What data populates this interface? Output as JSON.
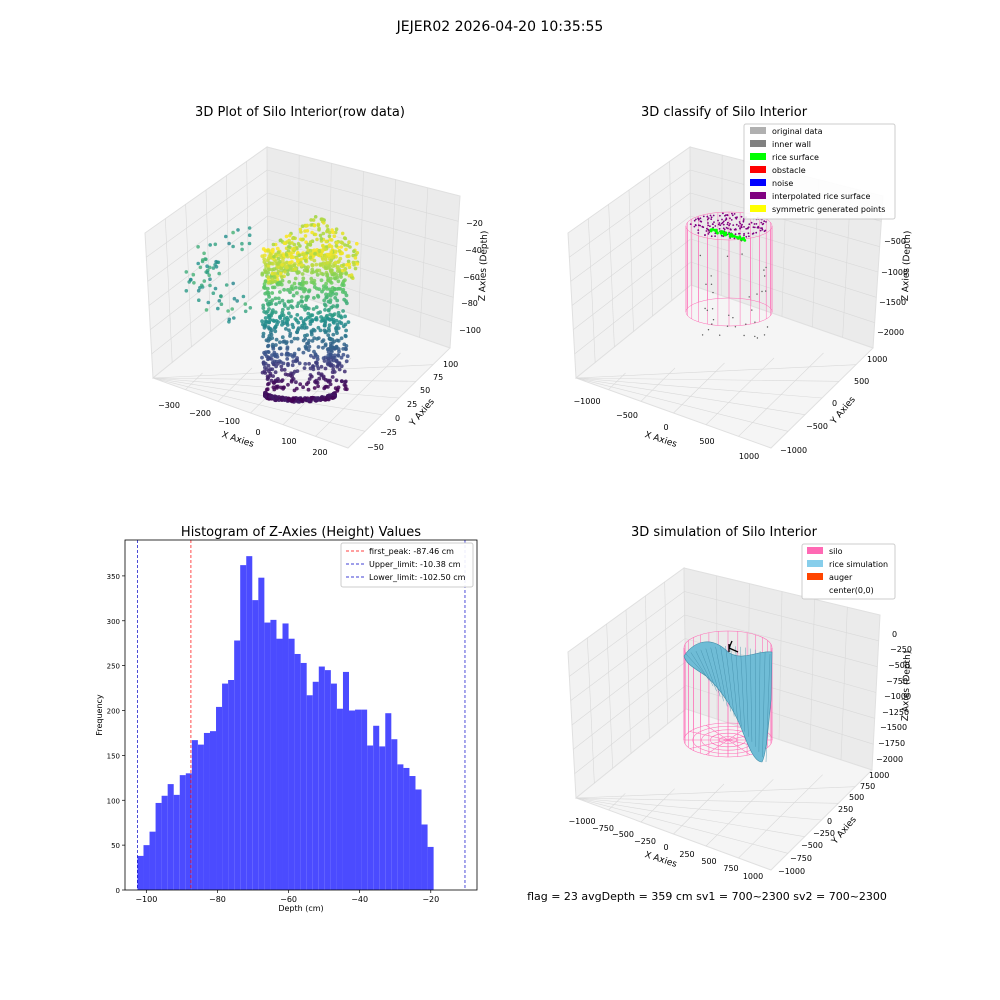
{
  "figure": {
    "suptitle": "JEJER02 2026-04-20 10:35:55",
    "footer": "flag = 23   avgDepth = 359 cm   sv1 = 700~2300  sv2 = 700~2300"
  },
  "colors": {
    "histogram_bar": "#4b4bff",
    "first_peak_line": "#ff0000",
    "limit_line": "#0000c8",
    "silo_wire": "#ff69b4",
    "rice_simulation": "#6fbcd6",
    "auger": "#ff4500",
    "pane": "#f2f2f2",
    "grid": "#d9d9d9"
  },
  "chart_data": [
    {
      "type": "scatter",
      "projection": "3d",
      "title": "3D Plot of Silo Interior(row data)",
      "xlabel": "X Axies",
      "ylabel": "Y Axies",
      "zlabel": "Z Axies (Depth)",
      "x_ticks": [
        "−300",
        "−200",
        "−100",
        "0",
        "100",
        "200"
      ],
      "y_ticks": [
        "−50",
        "−25",
        "0",
        "25",
        "50",
        "75",
        "100"
      ],
      "z_ticks": [
        "−20",
        "−40",
        "−60",
        "−80",
        "−100"
      ],
      "xlim": [
        -350,
        250
      ],
      "ylim": [
        -60,
        120
      ],
      "zlim": [
        -110,
        -10
      ],
      "colormap": "viridis"
    },
    {
      "type": "scatter",
      "projection": "3d",
      "title": "3D classify of Silo Interior",
      "xlabel": "X Axies",
      "ylabel": "Y Axies",
      "zlabel": "Z Axies (Depth)",
      "x_ticks": [
        "−1000",
        "−500",
        "0",
        "500",
        "1000"
      ],
      "y_ticks": [
        "−1000",
        "−500",
        "0",
        "500",
        "1000"
      ],
      "z_ticks": [
        "−500",
        "−1000",
        "−1500",
        "−2000"
      ],
      "xlim": [
        -1100,
        1100
      ],
      "ylim": [
        -1100,
        1100
      ],
      "zlim": [
        -2100,
        0
      ],
      "legend_position": "top-right",
      "legend": [
        {
          "label": "original data",
          "color": "#b0b0b0"
        },
        {
          "label": "inner wall",
          "color": "#808080"
        },
        {
          "label": "rice surface",
          "color": "#00ff00"
        },
        {
          "label": "obstacle",
          "color": "#ff0000"
        },
        {
          "label": "noise",
          "color": "#0000ff"
        },
        {
          "label": "interpolated rice surface",
          "color": "#800080"
        },
        {
          "label": "symmetric generated points",
          "color": "#ffff00"
        }
      ]
    },
    {
      "type": "bar",
      "title": "Histogram of Z-Axies (Height) Values",
      "xlabel": "Depth (cm)",
      "ylabel": "Frequency",
      "xlim": [
        -106,
        -7
      ],
      "ylim": [
        0,
        390
      ],
      "x_ticks": [
        -100,
        -80,
        -60,
        -40,
        -20
      ],
      "x_tick_labels": [
        "−100",
        "−80",
        "−60",
        "−40",
        "−20"
      ],
      "y_ticks": [
        0,
        50,
        100,
        150,
        200,
        250,
        300,
        350
      ],
      "y_tick_labels": [
        "0",
        "50",
        "100",
        "150",
        "200",
        "250",
        "300",
        "350"
      ],
      "bin_start": -102.5,
      "bin_width": 1.7,
      "values": [
        38,
        50,
        65,
        97,
        105,
        118,
        106,
        128,
        130,
        167,
        162,
        175,
        177,
        204,
        230,
        234,
        278,
        362,
        372,
        323,
        348,
        298,
        301,
        280,
        297,
        280,
        263,
        253,
        217,
        232,
        249,
        245,
        230,
        202,
        243,
        200,
        201,
        201,
        161,
        183,
        160,
        197,
        168,
        140,
        136,
        127,
        112,
        73,
        48
      ],
      "legend_position": "top-right",
      "vlines": [
        {
          "label": "first_peak: -87.46 cm",
          "x": -87.46,
          "color": "#ff0000"
        },
        {
          "label": "Upper_limit: -10.38 cm",
          "x": -10.38,
          "color": "#0000c8"
        },
        {
          "label": "Lower_limit: -102.50 cm",
          "x": -102.5,
          "color": "#0000c8"
        }
      ]
    },
    {
      "type": "surface",
      "projection": "3d",
      "title": "3D simulation of Silo Interior",
      "xlabel": "X Axies",
      "ylabel": "Y Axies",
      "zlabel": "Z Axies (Depth)",
      "x_ticks": [
        "−1000",
        "−750",
        "−500",
        "−250",
        "0",
        "250",
        "500",
        "750",
        "1000"
      ],
      "y_ticks": [
        "−1000",
        "−750",
        "−500",
        "−250",
        "0",
        "250",
        "500",
        "750",
        "1000"
      ],
      "z_ticks": [
        "0",
        "−250",
        "−500",
        "−750",
        "−1000",
        "−1250",
        "−1500",
        "−1750",
        "−2000"
      ],
      "xlim": [
        -1100,
        1100
      ],
      "ylim": [
        -1100,
        1100
      ],
      "zlim": [
        -2100,
        100
      ],
      "legend_position": "top-right",
      "legend": [
        {
          "label": "silo",
          "color": "#ff69b4"
        },
        {
          "label": "rice simulation",
          "color": "#87ceeb"
        },
        {
          "label": "auger",
          "color": "#ff4500"
        },
        {
          "label": "center(0,0)",
          "color": ""
        }
      ]
    }
  ]
}
